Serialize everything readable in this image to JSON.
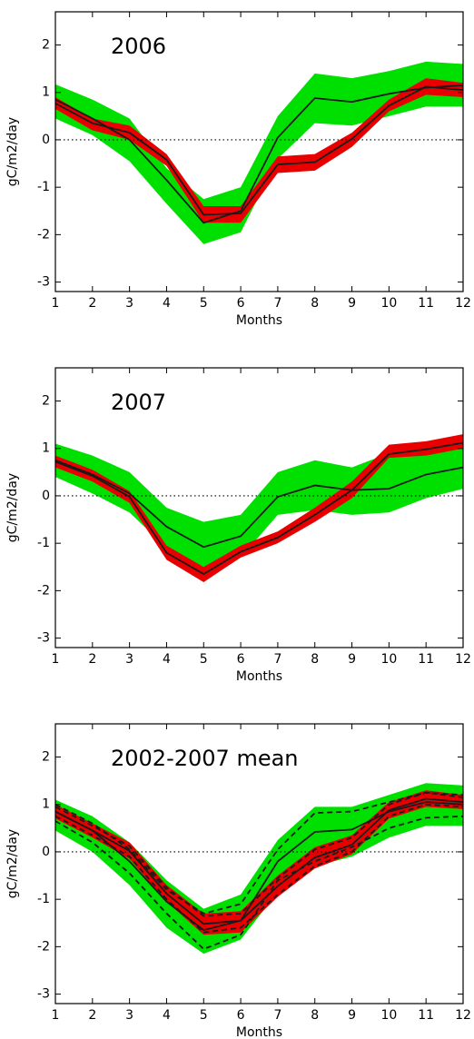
{
  "chart_data": [
    {
      "type": "band-line",
      "title": "2006",
      "xlabel": "Months",
      "ylabel": "gC/m2/day",
      "x": [
        1,
        2,
        3,
        4,
        5,
        6,
        7,
        8,
        9,
        10,
        11,
        12
      ],
      "xlim": [
        1,
        12
      ],
      "xticks": [
        1,
        2,
        3,
        4,
        5,
        6,
        7,
        8,
        9,
        10,
        11,
        12
      ],
      "ylim": [
        -3.2,
        2.7
      ],
      "yticks": [
        -3,
        -2,
        -1,
        0,
        1,
        2
      ],
      "hline": 0,
      "hline_style": "dotted",
      "bands": [
        {
          "color": "#00e000",
          "upper": [
            1.17,
            0.85,
            0.45,
            -0.6,
            -1.25,
            -1.0,
            0.5,
            1.4,
            1.3,
            1.45,
            1.65,
            1.6
          ],
          "lower": [
            0.45,
            0.1,
            -0.45,
            -1.35,
            -2.2,
            -1.95,
            -0.4,
            0.35,
            0.3,
            0.5,
            0.7,
            0.7
          ]
        },
        {
          "color": "#e80000",
          "upper": [
            0.9,
            0.45,
            0.3,
            -0.3,
            -1.4,
            -1.4,
            -0.35,
            -0.3,
            0.15,
            0.85,
            1.3,
            1.2
          ],
          "lower": [
            0.65,
            0.2,
            0.0,
            -0.55,
            -1.75,
            -1.75,
            -0.7,
            -0.65,
            -0.15,
            0.6,
            0.95,
            0.9
          ]
        }
      ],
      "lines": [
        {
          "color": "#1a1a1a",
          "dash": false,
          "values": [
            0.85,
            0.45,
            0.0,
            -0.85,
            -1.75,
            -1.5,
            0.05,
            0.88,
            0.8,
            0.97,
            1.1,
            1.15
          ]
        },
        {
          "color": "#1a1a1a",
          "dash": false,
          "values": [
            0.77,
            0.35,
            0.15,
            -0.42,
            -1.58,
            -1.55,
            -0.52,
            -0.47,
            0.02,
            0.72,
            1.12,
            1.05
          ]
        }
      ]
    },
    {
      "type": "band-line",
      "title": "2007",
      "xlabel": "Months",
      "ylabel": "gC/m2/day",
      "x": [
        1,
        2,
        3,
        4,
        5,
        6,
        7,
        8,
        9,
        10,
        11,
        12
      ],
      "xlim": [
        1,
        12
      ],
      "xticks": [
        1,
        2,
        3,
        4,
        5,
        6,
        7,
        8,
        9,
        10,
        11,
        12
      ],
      "ylim": [
        -3.2,
        2.7
      ],
      "yticks": [
        -3,
        -2,
        -1,
        0,
        1,
        2
      ],
      "hline": 0,
      "hline_style": "dotted",
      "bands": [
        {
          "color": "#00e000",
          "upper": [
            1.1,
            0.85,
            0.5,
            -0.25,
            -0.55,
            -0.4,
            0.5,
            0.75,
            0.6,
            0.9,
            1.1,
            1.05
          ],
          "lower": [
            0.4,
            0.05,
            -0.35,
            -1.1,
            -1.5,
            -1.3,
            -0.4,
            -0.3,
            -0.4,
            -0.35,
            -0.05,
            0.15
          ]
        },
        {
          "color": "#e80000",
          "upper": [
            0.85,
            0.55,
            0.1,
            -1.05,
            -1.5,
            -1.05,
            -0.75,
            -0.25,
            0.3,
            1.08,
            1.15,
            1.3
          ],
          "lower": [
            0.6,
            0.3,
            -0.15,
            -1.35,
            -1.82,
            -1.3,
            -1.0,
            -0.55,
            -0.05,
            0.8,
            0.85,
            1.0
          ]
        }
      ],
      "lines": [
        {
          "color": "#1a1a1a",
          "dash": false,
          "values": [
            0.75,
            0.45,
            0.05,
            -0.65,
            -1.08,
            -0.85,
            -0.02,
            0.22,
            0.12,
            0.15,
            0.45,
            0.6
          ]
        },
        {
          "color": "#1a1a1a",
          "dash": false,
          "values": [
            0.72,
            0.42,
            -0.02,
            -1.2,
            -1.65,
            -1.18,
            -0.88,
            -0.4,
            0.12,
            0.88,
            0.98,
            1.12
          ]
        }
      ]
    },
    {
      "type": "band-line",
      "title": "2002-2007 mean",
      "xlabel": "Months",
      "ylabel": "gC/m2/day",
      "x": [
        1,
        2,
        3,
        4,
        5,
        6,
        7,
        8,
        9,
        10,
        11,
        12
      ],
      "xlim": [
        1,
        12
      ],
      "xticks": [
        1,
        2,
        3,
        4,
        5,
        6,
        7,
        8,
        9,
        10,
        11,
        12
      ],
      "ylim": [
        -3.2,
        2.7
      ],
      "yticks": [
        -3,
        -2,
        -1,
        0,
        1,
        2
      ],
      "hline": 0,
      "hline_style": "dotted",
      "bands": [
        {
          "color": "#00e000",
          "upper": [
            1.1,
            0.75,
            0.2,
            -0.6,
            -1.2,
            -0.9,
            0.25,
            0.95,
            0.95,
            1.2,
            1.45,
            1.4
          ],
          "lower": [
            0.45,
            0.0,
            -0.7,
            -1.6,
            -2.15,
            -1.85,
            -0.85,
            -0.3,
            -0.1,
            0.3,
            0.55,
            0.55
          ]
        },
        {
          "color": "#e80000",
          "upper": [
            1.0,
            0.6,
            0.2,
            -0.7,
            -1.3,
            -1.25,
            -0.5,
            0.1,
            0.35,
            1.05,
            1.3,
            1.2
          ],
          "lower": [
            0.7,
            0.3,
            -0.15,
            -1.05,
            -1.75,
            -1.7,
            -0.95,
            -0.35,
            -0.05,
            0.7,
            0.95,
            0.9
          ]
        }
      ],
      "lines": [
        {
          "color": "#1a1a1a",
          "dash": false,
          "values": [
            0.85,
            0.45,
            -0.2,
            -1.05,
            -1.65,
            -1.45,
            -0.2,
            0.42,
            0.47,
            0.85,
            1.05,
            1.0
          ]
        },
        {
          "color": "#1a1a1a",
          "dash": true,
          "values": [
            1.0,
            0.6,
            0.05,
            -0.8,
            -1.3,
            -1.1,
            0.05,
            0.82,
            0.85,
            1.05,
            1.25,
            1.2
          ]
        },
        {
          "color": "#1a1a1a",
          "dash": true,
          "values": [
            0.65,
            0.2,
            -0.45,
            -1.3,
            -2.05,
            -1.75,
            -0.6,
            -0.2,
            0.1,
            0.5,
            0.72,
            0.75
          ]
        },
        {
          "color": "#1a1a1a",
          "dash": false,
          "values": [
            0.85,
            0.45,
            0.02,
            -0.88,
            -1.52,
            -1.45,
            -0.72,
            -0.12,
            0.15,
            0.88,
            1.12,
            1.05
          ]
        },
        {
          "color": "#1a1a1a",
          "dash": true,
          "values": [
            0.95,
            0.55,
            0.12,
            -0.75,
            -1.35,
            -1.3,
            -0.55,
            0.05,
            0.3,
            1.0,
            1.25,
            1.15
          ]
        },
        {
          "color": "#1a1a1a",
          "dash": true,
          "values": [
            0.75,
            0.35,
            -0.1,
            -1.0,
            -1.7,
            -1.6,
            -0.9,
            -0.3,
            0.0,
            0.75,
            1.0,
            0.95
          ]
        }
      ]
    }
  ]
}
